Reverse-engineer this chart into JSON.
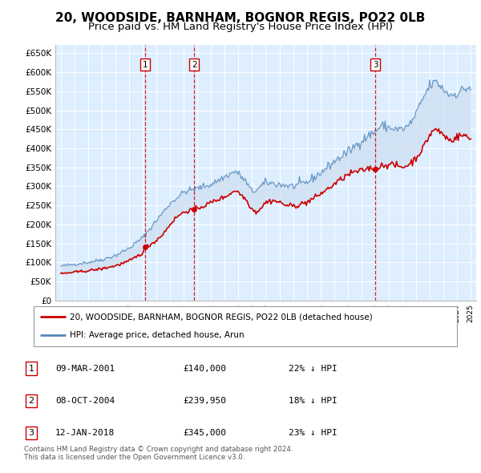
{
  "title": "20, WOODSIDE, BARNHAM, BOGNOR REGIS, PO22 0LB",
  "subtitle": "Price paid vs. HM Land Registry's House Price Index (HPI)",
  "ylim": [
    0,
    680000
  ],
  "yticks": [
    0,
    50000,
    100000,
    150000,
    200000,
    250000,
    300000,
    350000,
    400000,
    450000,
    500000,
    550000,
    600000,
    650000
  ],
  "ytick_labels": [
    "£0",
    "£50K",
    "£100K",
    "£150K",
    "£200K",
    "£250K",
    "£300K",
    "£350K",
    "£400K",
    "£450K",
    "£500K",
    "£550K",
    "£600K",
    "£650K"
  ],
  "sale_year_decimals": [
    2001.18,
    2004.77,
    2018.03
  ],
  "sale_prices": [
    140000,
    239950,
    345000
  ],
  "sale_labels": [
    "1",
    "2",
    "3"
  ],
  "legend_line1": "20, WOODSIDE, BARNHAM, BOGNOR REGIS, PO22 0LB (detached house)",
  "legend_line2": "HPI: Average price, detached house, Arun",
  "table_rows": [
    [
      "1",
      "09-MAR-2001",
      "£140,000",
      "22% ↓ HPI"
    ],
    [
      "2",
      "08-OCT-2004",
      "£239,950",
      "18% ↓ HPI"
    ],
    [
      "3",
      "12-JAN-2018",
      "£345,000",
      "23% ↓ HPI"
    ]
  ],
  "footnote": "Contains HM Land Registry data © Crown copyright and database right 2024.\nThis data is licensed under the Open Government Licence v3.0.",
  "red_color": "#cc0000",
  "blue_color": "#5588bb",
  "blue_fill_color": "#ccddf0",
  "background_color": "#ddeeff",
  "title_fontsize": 11,
  "subtitle_fontsize": 9.5
}
